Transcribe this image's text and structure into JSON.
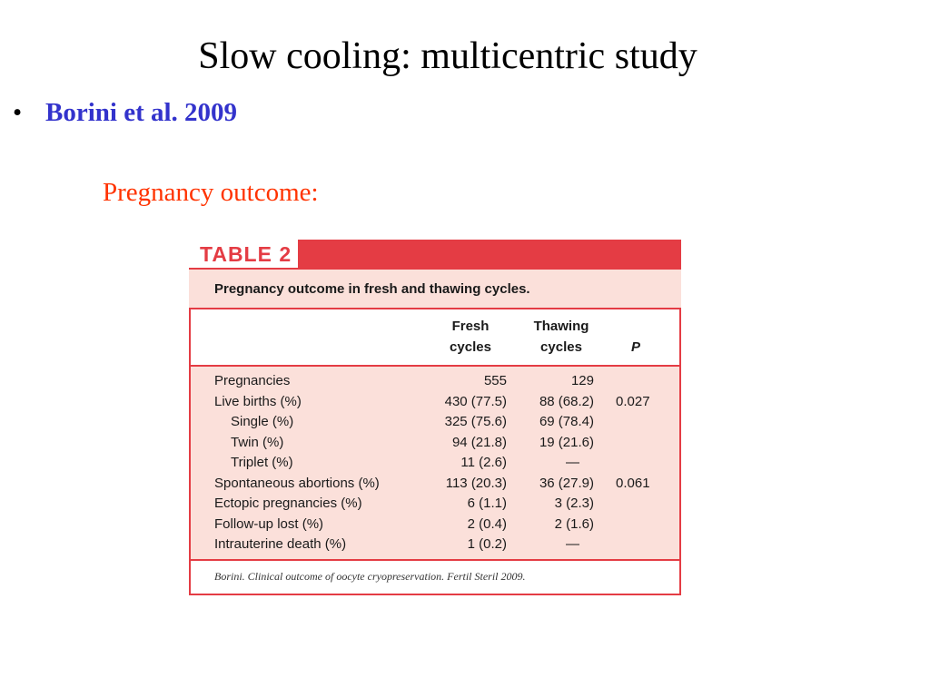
{
  "slide": {
    "title": "Slow cooling: multicentric study",
    "bullet_mark": "•",
    "bullet_text": "Borini et al. 2009",
    "subheading": "Pregnancy outcome:"
  },
  "table": {
    "label": "TABLE 2",
    "caption": "Pregnancy outcome in fresh and thawing cycles.",
    "columns": {
      "fresh": [
        "Fresh",
        "cycles"
      ],
      "thawing": [
        "Thawing",
        "cycles"
      ],
      "p": "P"
    },
    "rows": [
      {
        "label": "Pregnancies",
        "fresh": "555",
        "thawing": "129",
        "p": ""
      },
      {
        "label": "Live births (%)",
        "fresh": "430 (77.5)",
        "thawing": "88 (68.2)",
        "p": "0.027"
      },
      {
        "label": "Single (%)",
        "fresh": "325 (75.6)",
        "thawing": "69 (78.4)",
        "p": ""
      },
      {
        "label": "Twin (%)",
        "fresh": "94 (21.8)",
        "thawing": "19 (21.6)",
        "p": ""
      },
      {
        "label": "Triplet (%)",
        "fresh": "11 (2.6)",
        "thawing": "—",
        "p": ""
      },
      {
        "label": "Spontaneous abortions (%)",
        "fresh": "113 (20.3)",
        "thawing": "36 (27.9)",
        "p": "0.061"
      },
      {
        "label": "Ectopic pregnancies (%)",
        "fresh": "6 (1.1)",
        "thawing": "3 (2.3)",
        "p": ""
      },
      {
        "label": "Follow-up lost (%)",
        "fresh": "2 (0.4)",
        "thawing": "2 (1.6)",
        "p": ""
      },
      {
        "label": "Intrauterine death (%)",
        "fresh": "1 (0.2)",
        "thawing": "—",
        "p": ""
      }
    ],
    "citation": "Borini. Clinical outcome of oocyte cryopreservation. Fertil Steril 2009."
  },
  "colors": {
    "title": "#000000",
    "bullet_text": "#3333cc",
    "subheading": "#ff3300",
    "table_accent": "#e43c44",
    "table_fill": "#fbe0da"
  }
}
